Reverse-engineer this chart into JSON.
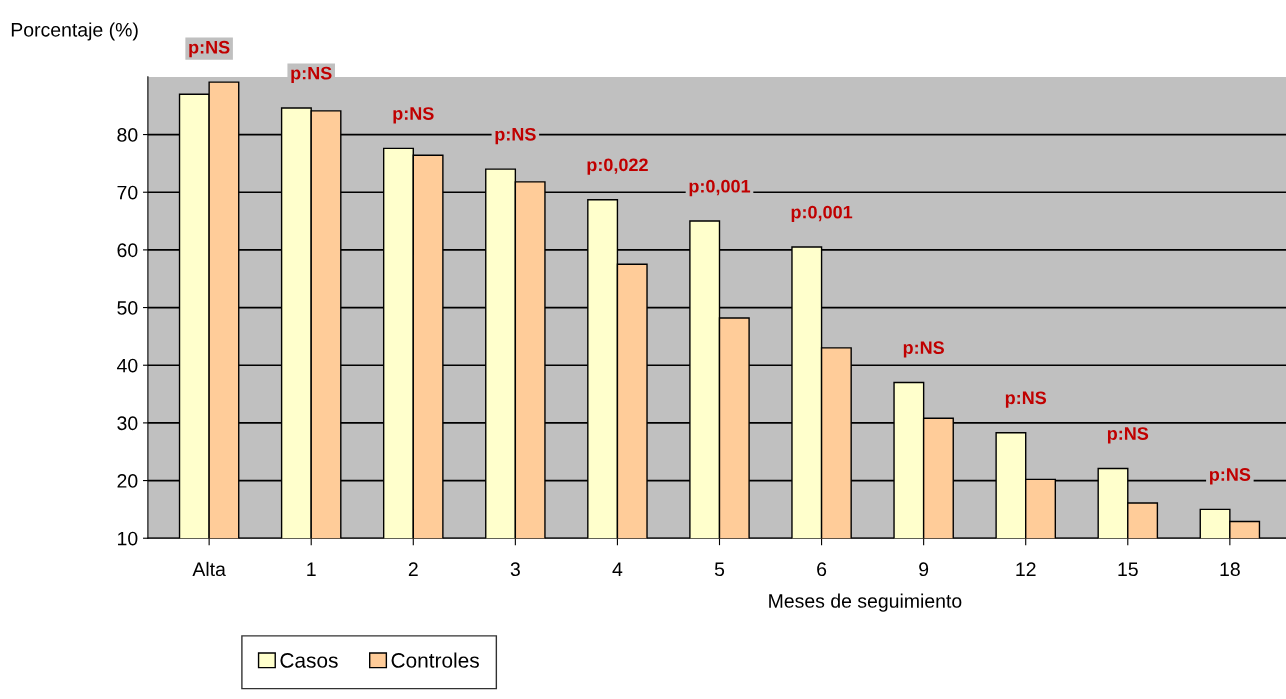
{
  "chart_data": {
    "type": "bar",
    "ylabel": "Porcentaje (%)",
    "xlabel": "Meses de seguimiento",
    "categories": [
      "Alta",
      "1",
      "2",
      "3",
      "4",
      "5",
      "6",
      "9",
      "12",
      "15",
      "18"
    ],
    "series": [
      {
        "name": "Casos",
        "color": "#ffffcc",
        "values": [
          87.0,
          84.6,
          77.6,
          74.0,
          68.7,
          65.0,
          60.5,
          37.0,
          28.3,
          22.1,
          15.0
        ]
      },
      {
        "name": "Controles",
        "color": "#ffcc99",
        "values": [
          89.1,
          84.1,
          76.4,
          71.8,
          57.5,
          48.2,
          43.0,
          30.8,
          20.2,
          16.1,
          12.9
        ]
      }
    ],
    "ylim": [
      10,
      90
    ],
    "yticks": [
      10,
      20,
      30,
      40,
      50,
      60,
      70,
      80
    ],
    "grid": "y",
    "legend": "bottom",
    "annotations": [
      "p:NS",
      "p:NS",
      "p:NS",
      "p:NS",
      "p:0,022",
      "p:0,001",
      "p:0,001",
      "p:NS",
      "p:NS",
      "p:NS",
      "p:NS"
    ]
  }
}
